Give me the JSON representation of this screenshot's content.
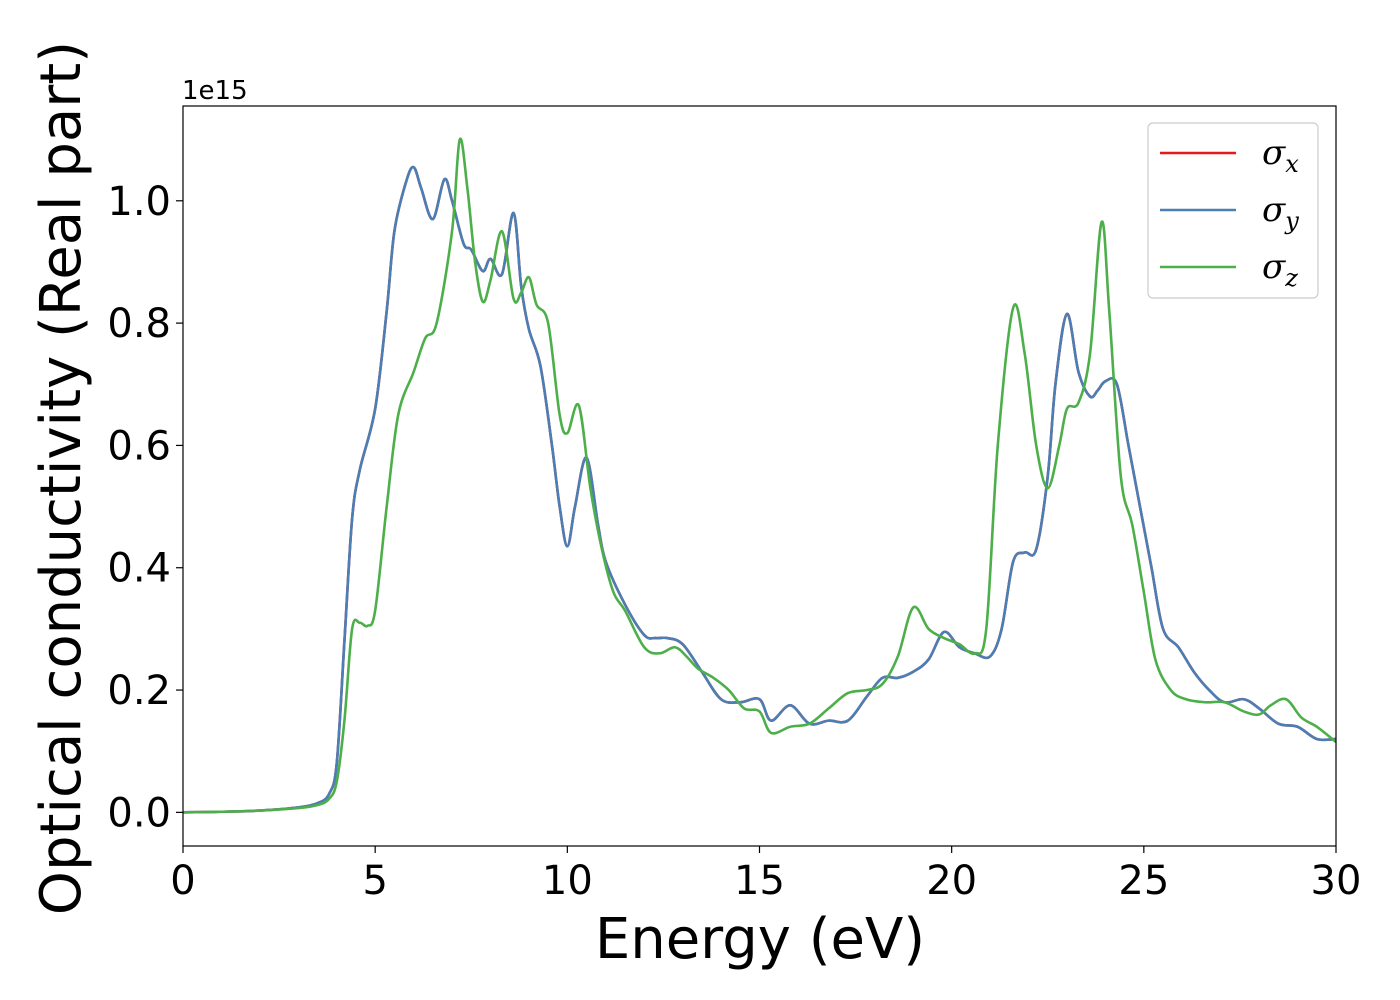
{
  "chart_data": {
    "type": "line",
    "title": "",
    "xlabel": "Energy (eV)",
    "ylabel": "Optical conductivity (Real part)",
    "y_offset_label": "1e15",
    "xlim": [
      0,
      30
    ],
    "ylim": [
      -0.055,
      1.155
    ],
    "x_ticks": [
      0,
      5,
      10,
      15,
      20,
      25,
      30
    ],
    "x_tick_labels": [
      "0",
      "5",
      "10",
      "15",
      "20",
      "25",
      "30"
    ],
    "y_ticks": [
      0.0,
      0.2,
      0.4,
      0.6,
      0.8,
      1.0
    ],
    "y_tick_labels": [
      "0.0",
      "0.2",
      "0.4",
      "0.6",
      "0.8",
      "1.0"
    ],
    "grid": false,
    "legend_position": "top-right",
    "series": [
      {
        "name": "σx",
        "color": "#e41a1c",
        "x": [
          0,
          1,
          2,
          3,
          3.5,
          3.8,
          4.0,
          4.2,
          4.4,
          4.6,
          5.0,
          5.3,
          5.5,
          5.8,
          6.0,
          6.2,
          6.5,
          6.8,
          7.0,
          7.3,
          7.5,
          7.8,
          8.0,
          8.3,
          8.6,
          8.8,
          9.0,
          9.3,
          9.6,
          9.8,
          10.0,
          10.2,
          10.5,
          10.8,
          11.0,
          11.5,
          12.0,
          12.3,
          12.6,
          13.0,
          13.5,
          14.0,
          14.5,
          15.0,
          15.3,
          15.8,
          16.3,
          16.8,
          17.3,
          17.8,
          18.2,
          18.6,
          19.0,
          19.4,
          19.8,
          20.2,
          20.6,
          21.0,
          21.3,
          21.6,
          21.9,
          22.2,
          22.5,
          22.7,
          23.0,
          23.3,
          23.6,
          23.8,
          24.0,
          24.3,
          24.6,
          24.9,
          25.2,
          25.5,
          25.9,
          26.3,
          26.7,
          27.1,
          27.6,
          28.0,
          28.5,
          29.0,
          29.5,
          30.0
        ],
        "values": [
          0.0,
          0.001,
          0.003,
          0.008,
          0.015,
          0.03,
          0.08,
          0.28,
          0.48,
          0.56,
          0.66,
          0.82,
          0.95,
          1.03,
          1.055,
          1.02,
          0.97,
          1.035,
          1.0,
          0.93,
          0.92,
          0.885,
          0.905,
          0.88,
          0.98,
          0.86,
          0.79,
          0.73,
          0.6,
          0.5,
          0.435,
          0.5,
          0.58,
          0.47,
          0.41,
          0.34,
          0.29,
          0.285,
          0.285,
          0.275,
          0.23,
          0.185,
          0.18,
          0.185,
          0.15,
          0.175,
          0.145,
          0.15,
          0.15,
          0.19,
          0.22,
          0.22,
          0.23,
          0.25,
          0.295,
          0.27,
          0.26,
          0.255,
          0.3,
          0.41,
          0.425,
          0.43,
          0.55,
          0.7,
          0.815,
          0.72,
          0.68,
          0.69,
          0.705,
          0.7,
          0.6,
          0.5,
          0.4,
          0.3,
          0.27,
          0.23,
          0.2,
          0.18,
          0.185,
          0.17,
          0.145,
          0.14,
          0.12,
          0.12
        ]
      },
      {
        "name": "σy",
        "color": "#4a7fb5",
        "x": [
          0,
          1,
          2,
          3,
          3.5,
          3.8,
          4.0,
          4.2,
          4.4,
          4.6,
          5.0,
          5.3,
          5.5,
          5.8,
          6.0,
          6.2,
          6.5,
          6.8,
          7.0,
          7.3,
          7.5,
          7.8,
          8.0,
          8.3,
          8.6,
          8.8,
          9.0,
          9.3,
          9.6,
          9.8,
          10.0,
          10.2,
          10.5,
          10.8,
          11.0,
          11.5,
          12.0,
          12.3,
          12.6,
          13.0,
          13.5,
          14.0,
          14.5,
          15.0,
          15.3,
          15.8,
          16.3,
          16.8,
          17.3,
          17.8,
          18.2,
          18.6,
          19.0,
          19.4,
          19.8,
          20.2,
          20.6,
          21.0,
          21.3,
          21.6,
          21.9,
          22.2,
          22.5,
          22.7,
          23.0,
          23.3,
          23.6,
          23.8,
          24.0,
          24.3,
          24.6,
          24.9,
          25.2,
          25.5,
          25.9,
          26.3,
          26.7,
          27.1,
          27.6,
          28.0,
          28.5,
          29.0,
          29.5,
          30.0
        ],
        "values": [
          0.0,
          0.001,
          0.003,
          0.008,
          0.015,
          0.03,
          0.08,
          0.28,
          0.48,
          0.56,
          0.66,
          0.82,
          0.95,
          1.03,
          1.055,
          1.02,
          0.97,
          1.035,
          1.0,
          0.93,
          0.92,
          0.885,
          0.905,
          0.88,
          0.98,
          0.86,
          0.79,
          0.73,
          0.6,
          0.5,
          0.435,
          0.5,
          0.58,
          0.47,
          0.41,
          0.34,
          0.29,
          0.285,
          0.285,
          0.275,
          0.23,
          0.185,
          0.18,
          0.185,
          0.15,
          0.175,
          0.145,
          0.15,
          0.15,
          0.19,
          0.22,
          0.22,
          0.23,
          0.25,
          0.295,
          0.27,
          0.26,
          0.255,
          0.3,
          0.41,
          0.425,
          0.43,
          0.55,
          0.7,
          0.815,
          0.72,
          0.68,
          0.69,
          0.705,
          0.7,
          0.6,
          0.5,
          0.4,
          0.3,
          0.27,
          0.23,
          0.2,
          0.18,
          0.185,
          0.17,
          0.145,
          0.14,
          0.12,
          0.12
        ]
      },
      {
        "name": "σz",
        "color": "#4daf4a",
        "x": [
          0,
          1,
          2,
          3,
          3.5,
          3.8,
          4.0,
          4.2,
          4.4,
          4.6,
          4.8,
          5.0,
          5.3,
          5.6,
          6.0,
          6.3,
          6.6,
          7.0,
          7.2,
          7.4,
          7.6,
          7.8,
          8.0,
          8.3,
          8.6,
          8.8,
          9.0,
          9.2,
          9.5,
          9.8,
          10.0,
          10.3,
          10.6,
          10.9,
          11.2,
          11.5,
          12.0,
          12.4,
          12.8,
          13.1,
          13.4,
          13.8,
          14.2,
          14.6,
          15.0,
          15.3,
          15.8,
          16.3,
          16.8,
          17.3,
          17.8,
          18.2,
          18.6,
          19.0,
          19.4,
          19.8,
          20.2,
          20.6,
          20.9,
          21.2,
          21.6,
          21.9,
          22.2,
          22.5,
          22.8,
          23.0,
          23.3,
          23.6,
          23.9,
          24.1,
          24.4,
          24.7,
          25.0,
          25.3,
          25.7,
          26.1,
          26.6,
          27.1,
          27.6,
          28.0,
          28.3,
          28.7,
          29.1,
          29.5,
          30.0
        ],
        "values": [
          0.0,
          0.001,
          0.003,
          0.007,
          0.012,
          0.022,
          0.05,
          0.15,
          0.3,
          0.31,
          0.305,
          0.33,
          0.5,
          0.65,
          0.72,
          0.775,
          0.8,
          0.95,
          1.1,
          1.02,
          0.9,
          0.835,
          0.87,
          0.95,
          0.84,
          0.85,
          0.875,
          0.83,
          0.8,
          0.65,
          0.62,
          0.665,
          0.53,
          0.43,
          0.36,
          0.33,
          0.27,
          0.26,
          0.27,
          0.255,
          0.235,
          0.22,
          0.2,
          0.17,
          0.165,
          0.13,
          0.14,
          0.145,
          0.17,
          0.195,
          0.2,
          0.21,
          0.255,
          0.335,
          0.3,
          0.285,
          0.275,
          0.26,
          0.3,
          0.6,
          0.825,
          0.75,
          0.6,
          0.53,
          0.6,
          0.66,
          0.67,
          0.75,
          0.965,
          0.82,
          0.55,
          0.47,
          0.36,
          0.25,
          0.2,
          0.185,
          0.18,
          0.18,
          0.165,
          0.16,
          0.175,
          0.185,
          0.155,
          0.14,
          0.115
        ]
      }
    ]
  }
}
